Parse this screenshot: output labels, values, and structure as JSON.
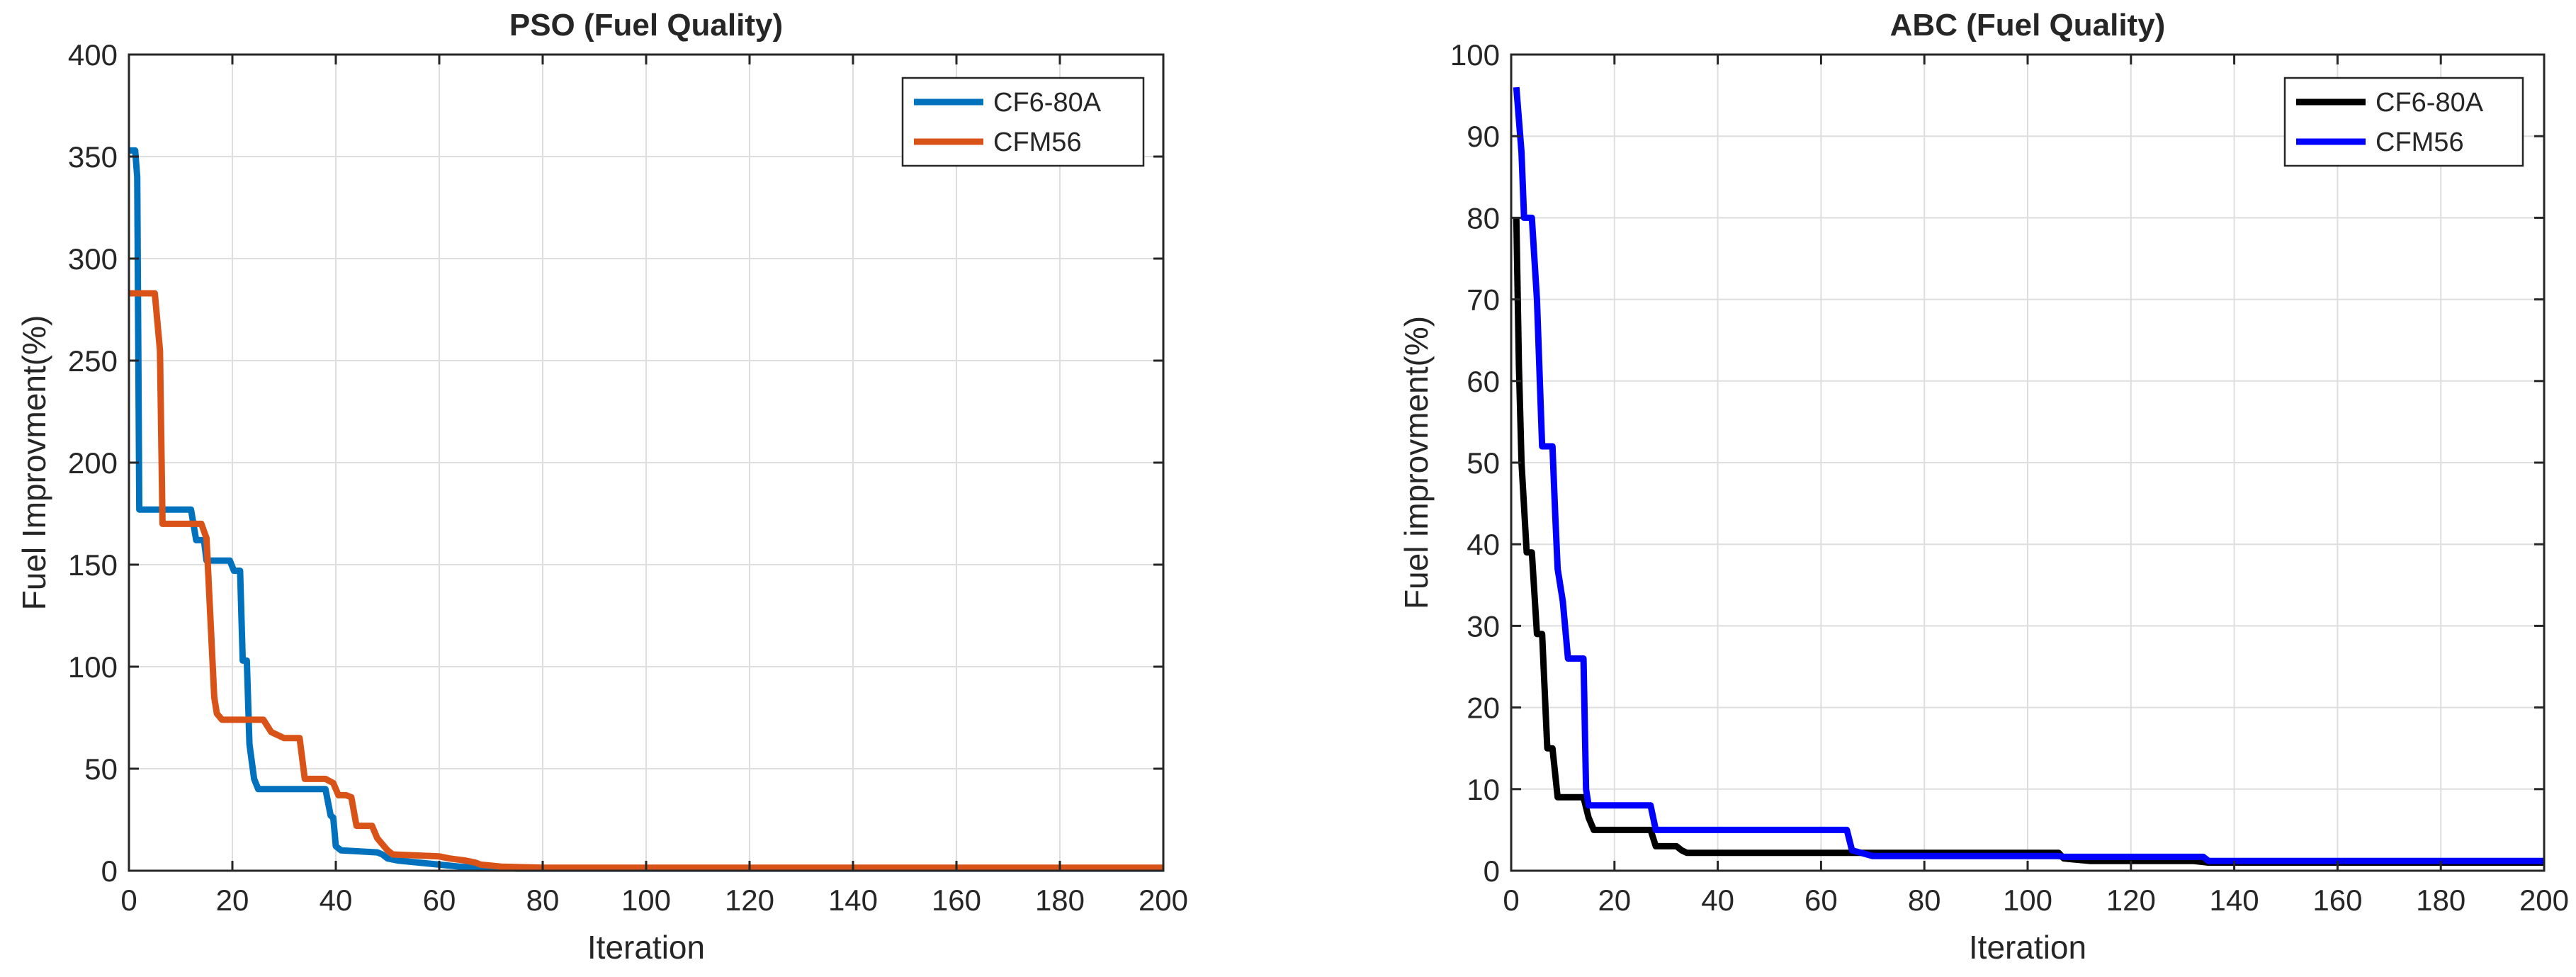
{
  "chart_data": [
    {
      "type": "line",
      "title": "PSO (Fuel Quality)",
      "xlabel": "Iteration",
      "ylabel": "Fuel Improvment(%)",
      "xlim": [
        0,
        200
      ],
      "ylim": [
        0,
        400
      ],
      "xticks": [
        0,
        20,
        40,
        60,
        80,
        100,
        120,
        140,
        160,
        180,
        200
      ],
      "yticks": [
        0,
        50,
        100,
        150,
        200,
        250,
        300,
        350,
        400
      ],
      "grid": true,
      "legend_position": "top-right",
      "series": [
        {
          "name": "CF6-80A",
          "color": "#0072BD",
          "points": [
            [
              0,
              353
            ],
            [
              1.2,
              353
            ],
            [
              1.6,
              340
            ],
            [
              2,
              177
            ],
            [
              12,
              177
            ],
            [
              13,
              162
            ],
            [
              14.5,
              162
            ],
            [
              15,
              152
            ],
            [
              19.5,
              152
            ],
            [
              20.3,
              147
            ],
            [
              21.5,
              147
            ],
            [
              22,
              103
            ],
            [
              22.8,
              103
            ],
            [
              23.3,
              62
            ],
            [
              24.2,
              45
            ],
            [
              25,
              40
            ],
            [
              38,
              40
            ],
            [
              39,
              27
            ],
            [
              39.5,
              26
            ],
            [
              40,
              12
            ],
            [
              41,
              10
            ],
            [
              48,
              9
            ],
            [
              49,
              8
            ],
            [
              50,
              6
            ],
            [
              52,
              5
            ],
            [
              56,
              4
            ],
            [
              60,
              3
            ],
            [
              64,
              2
            ],
            [
              68,
              1.5
            ],
            [
              75,
              1
            ],
            [
              80,
              1
            ],
            [
              200,
              1
            ]
          ]
        },
        {
          "name": "CFM56",
          "color": "#D95319",
          "points": [
            [
              0,
              283
            ],
            [
              5,
              283
            ],
            [
              6,
              255
            ],
            [
              6.5,
              170
            ],
            [
              14,
              170
            ],
            [
              15,
              163
            ],
            [
              16.5,
              85
            ],
            [
              17,
              77
            ],
            [
              18,
              74
            ],
            [
              26,
              74
            ],
            [
              27.5,
              68
            ],
            [
              30,
              65
            ],
            [
              33,
              65
            ],
            [
              34,
              45
            ],
            [
              38,
              45
            ],
            [
              39.5,
              43
            ],
            [
              40.5,
              37
            ],
            [
              42,
              37
            ],
            [
              43,
              36
            ],
            [
              44,
              22
            ],
            [
              47,
              22
            ],
            [
              48,
              16
            ],
            [
              49,
              13
            ],
            [
              50,
              10
            ],
            [
              51,
              8
            ],
            [
              60,
              7
            ],
            [
              62,
              6
            ],
            [
              65,
              5
            ],
            [
              67,
              4
            ],
            [
              68,
              3
            ],
            [
              72,
              2
            ],
            [
              80,
              1.5
            ],
            [
              200,
              1.5
            ]
          ]
        }
      ]
    },
    {
      "type": "line",
      "title": "ABC (Fuel Quality)",
      "xlabel": "Iteration",
      "ylabel": "Fuel improvment(%)",
      "xlim": [
        0,
        200
      ],
      "ylim": [
        0,
        100
      ],
      "xticks": [
        0,
        20,
        40,
        60,
        80,
        100,
        120,
        140,
        160,
        180,
        200
      ],
      "yticks": [
        0,
        10,
        20,
        30,
        40,
        50,
        60,
        70,
        80,
        90,
        100
      ],
      "grid": true,
      "legend_position": "top-right",
      "series": [
        {
          "name": "CF6-80A",
          "color": "#000000",
          "points": [
            [
              1,
              80
            ],
            [
              1.5,
              62
            ],
            [
              2,
              50
            ],
            [
              3,
              39
            ],
            [
              4,
              39
            ],
            [
              5,
              29
            ],
            [
              6,
              29
            ],
            [
              7,
              15
            ],
            [
              8,
              15
            ],
            [
              9,
              9
            ],
            [
              14,
              9
            ],
            [
              15,
              6.5
            ],
            [
              16,
              5
            ],
            [
              27,
              5
            ],
            [
              28,
              3
            ],
            [
              32,
              3
            ],
            [
              33,
              2.5
            ],
            [
              34,
              2.2
            ],
            [
              106,
              2.2
            ],
            [
              107,
              1.5
            ],
            [
              112,
              1.2
            ],
            [
              132,
              1.2
            ],
            [
              135,
              1
            ],
            [
              200,
              1
            ]
          ]
        },
        {
          "name": "CFM56",
          "color": "#0000FF",
          "points": [
            [
              1,
              96
            ],
            [
              2,
              88
            ],
            [
              2.5,
              80
            ],
            [
              4,
              80
            ],
            [
              5,
              70
            ],
            [
              6,
              52
            ],
            [
              8,
              52
            ],
            [
              8.5,
              44
            ],
            [
              9,
              37
            ],
            [
              10,
              33
            ],
            [
              11,
              26
            ],
            [
              14,
              26
            ],
            [
              14.5,
              10
            ],
            [
              15,
              8
            ],
            [
              27,
              8
            ],
            [
              28,
              5
            ],
            [
              65,
              5
            ],
            [
              66,
              2.5
            ],
            [
              70,
              1.8
            ],
            [
              106,
              1.8
            ],
            [
              107,
              1.7
            ],
            [
              134,
              1.7
            ],
            [
              135,
              1.2
            ],
            [
              200,
              1.2
            ]
          ]
        }
      ]
    }
  ]
}
